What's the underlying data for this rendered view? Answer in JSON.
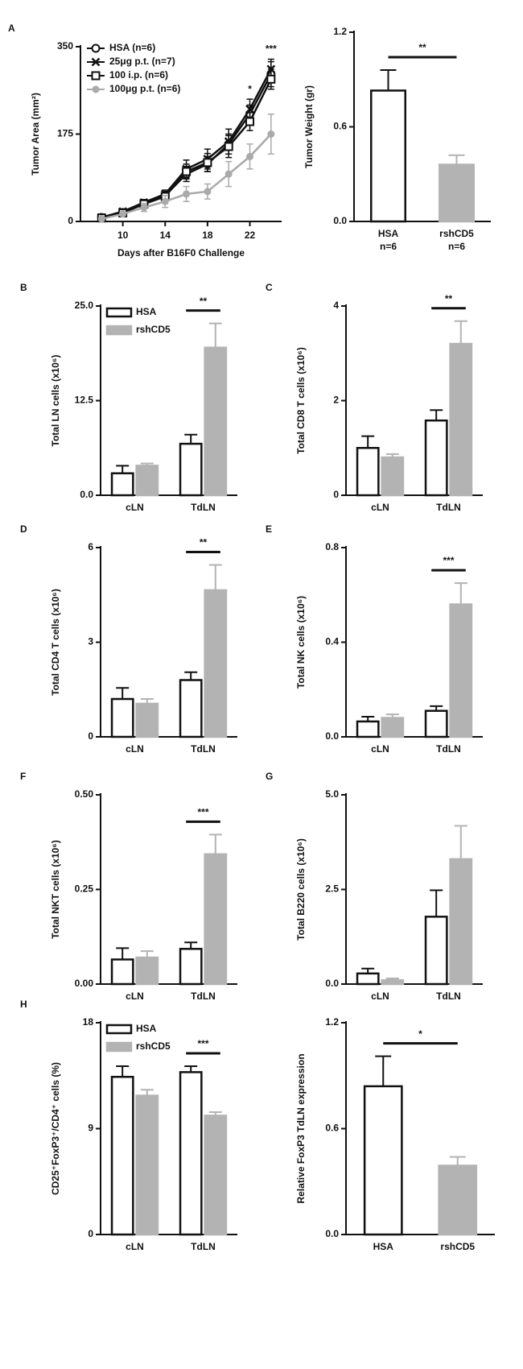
{
  "chart_data": [
    {
      "type": "line",
      "panel": "A",
      "ylabel": "Tumor Area (mm²)",
      "xlabel": "Days after B16F0 Challenge",
      "x": [
        8,
        10,
        12,
        14,
        16,
        18,
        20,
        22,
        24
      ],
      "xlim": [
        6,
        25
      ],
      "xticks": [
        10,
        14,
        18,
        22
      ],
      "ylim": [
        0,
        350
      ],
      "yticks": [
        0,
        175,
        350
      ],
      "legend": "upper left",
      "series": [
        {
          "name": "HSA (n=6)",
          "color": "#111111",
          "marker": "circle",
          "values": [
            8,
            18,
            35,
            52,
            95,
            115,
            155,
            215,
            295
          ],
          "errors": [
            3,
            5,
            6,
            8,
            15,
            15,
            20,
            18,
            25
          ]
        },
        {
          "name": "25μg p.t. (n=7)",
          "color": "#111111",
          "marker": "x",
          "values": [
            8,
            20,
            38,
            55,
            105,
            125,
            160,
            225,
            305
          ],
          "errors": [
            3,
            5,
            6,
            8,
            18,
            20,
            25,
            20,
            20
          ]
        },
        {
          "name": "100 i.p. (n=6)",
          "color": "#111111",
          "marker": "square",
          "values": [
            7,
            17,
            35,
            50,
            100,
            118,
            150,
            200,
            285
          ],
          "errors": [
            3,
            4,
            6,
            8,
            15,
            18,
            22,
            18,
            20
          ]
        },
        {
          "name": "100μg p.t.  (n=6)",
          "color": "#aaaaaa",
          "marker": "dot",
          "values": [
            5,
            15,
            28,
            40,
            55,
            60,
            95,
            130,
            175
          ],
          "errors": [
            3,
            4,
            8,
            12,
            15,
            15,
            25,
            25,
            40
          ]
        }
      ],
      "annotations": [
        {
          "text": "*",
          "x": 22
        },
        {
          "text": "***",
          "x": 24
        }
      ]
    },
    {
      "type": "bar",
      "ylabel": "Tumor Weight (gr)",
      "categories": [
        "HSA",
        "rshCD5"
      ],
      "category_sublabels": [
        "n=6",
        "n=6"
      ],
      "values": [
        0.83,
        0.36
      ],
      "errors": [
        0.13,
        0.06
      ],
      "colors": [
        "#ffffff",
        "#b3b3b3"
      ],
      "ylim": [
        0,
        1.2
      ],
      "yticks": [
        {
          "value": 0,
          "label": "0.0"
        },
        0.6,
        1.2
      ],
      "annotations": [
        {
          "text": "**"
        }
      ]
    },
    {
      "type": "bar",
      "panel": "B",
      "ylabel": "Total LN cells (x10⁶)",
      "categories": [
        "cLN",
        "TdLN"
      ],
      "ylim": [
        0,
        25
      ],
      "yticks": [
        {
          "value": 0,
          "label": "0.0"
        },
        12.5,
        {
          "value": 25,
          "label": "25.0"
        }
      ],
      "legend": "upper left",
      "series": [
        {
          "name": "HSA",
          "color": "#ffffff",
          "values": [
            2.9,
            6.8
          ],
          "errors": [
            1.0,
            1.2
          ]
        },
        {
          "name": "rshCD5",
          "color": "#b3b3b3",
          "values": [
            3.9,
            19.5
          ],
          "errors": [
            0.3,
            3.2
          ]
        }
      ],
      "annotations": [
        {
          "text": "**",
          "category": "TdLN"
        }
      ]
    },
    {
      "type": "bar",
      "panel": "C",
      "ylabel": "Total CD8 T cells (x10⁶)",
      "categories": [
        "cLN",
        "TdLN"
      ],
      "ylim": [
        0,
        4
      ],
      "yticks": [
        0,
        2,
        4
      ],
      "series": [
        {
          "name": "HSA",
          "color": "#ffffff",
          "values": [
            1.0,
            1.58
          ],
          "errors": [
            0.25,
            0.22
          ]
        },
        {
          "name": "rshCD5",
          "color": "#b3b3b3",
          "values": [
            0.8,
            3.2
          ],
          "errors": [
            0.07,
            0.48
          ]
        }
      ],
      "annotations": [
        {
          "text": "**",
          "category": "TdLN"
        }
      ]
    },
    {
      "type": "bar",
      "panel": "D",
      "ylabel": "Total CD4 T cells (x10⁶)",
      "categories": [
        "cLN",
        "TdLN"
      ],
      "ylim": [
        0,
        6
      ],
      "yticks": [
        0,
        3,
        6
      ],
      "series": [
        {
          "name": "HSA",
          "color": "#ffffff",
          "values": [
            1.2,
            1.8
          ],
          "errors": [
            0.35,
            0.25
          ]
        },
        {
          "name": "rshCD5",
          "color": "#b3b3b3",
          "values": [
            1.05,
            4.65
          ],
          "errors": [
            0.15,
            0.8
          ]
        }
      ],
      "annotations": [
        {
          "text": "**",
          "category": "TdLN"
        }
      ]
    },
    {
      "type": "bar",
      "panel": "E",
      "ylabel": "Total NK cells (x10⁶)",
      "categories": [
        "cLN",
        "TdLN"
      ],
      "ylim": [
        0,
        0.8
      ],
      "yticks": [
        {
          "value": 0,
          "label": "0.0"
        },
        0.4,
        0.8
      ],
      "series": [
        {
          "name": "HSA",
          "color": "#ffffff",
          "values": [
            0.065,
            0.11
          ],
          "errors": [
            0.02,
            0.02
          ]
        },
        {
          "name": "rshCD5",
          "color": "#b3b3b3",
          "values": [
            0.08,
            0.56
          ],
          "errors": [
            0.015,
            0.09
          ]
        }
      ],
      "annotations": [
        {
          "text": "***",
          "category": "TdLN"
        }
      ]
    },
    {
      "type": "bar",
      "panel": "F",
      "ylabel": "Total NKT cells (x10⁶)",
      "categories": [
        "cLN",
        "TdLN"
      ],
      "ylim": [
        0,
        0.5
      ],
      "yticks": [
        {
          "value": 0,
          "label": "0.00"
        },
        0.25,
        {
          "value": 0.5,
          "label": "0.50"
        }
      ],
      "series": [
        {
          "name": "HSA",
          "color": "#ffffff",
          "values": [
            0.065,
            0.093
          ],
          "errors": [
            0.03,
            0.017
          ]
        },
        {
          "name": "rshCD5",
          "color": "#b3b3b3",
          "values": [
            0.07,
            0.343
          ],
          "errors": [
            0.017,
            0.052
          ]
        }
      ],
      "annotations": [
        {
          "text": "***",
          "category": "TdLN"
        }
      ]
    },
    {
      "type": "bar",
      "panel": "G",
      "ylabel": "Total B220 cells (x10⁶)",
      "categories": [
        "cLN",
        "TdLN"
      ],
      "ylim": [
        0,
        5
      ],
      "yticks": [
        {
          "value": 0,
          "label": "0.0"
        },
        2.5,
        {
          "value": 5,
          "label": "5.0"
        }
      ],
      "series": [
        {
          "name": "HSA",
          "color": "#ffffff",
          "values": [
            0.28,
            1.78
          ],
          "errors": [
            0.13,
            0.7
          ]
        },
        {
          "name": "rshCD5",
          "color": "#b3b3b3",
          "values": [
            0.1,
            3.3
          ],
          "errors": [
            0.05,
            0.88
          ]
        }
      ]
    },
    {
      "type": "bar",
      "panel": "H",
      "ylabel": "CD25⁺FoxP3⁺/CD4⁺ cells (%)",
      "categories": [
        "cLN",
        "TdLN"
      ],
      "ylim": [
        0,
        18
      ],
      "yticks": [
        0,
        9,
        18
      ],
      "legend": "upper left",
      "series": [
        {
          "name": "HSA",
          "color": "#ffffff",
          "values": [
            13.4,
            13.8
          ],
          "errors": [
            0.9,
            0.5
          ]
        },
        {
          "name": "rshCD5",
          "color": "#b3b3b3",
          "values": [
            11.8,
            10.1
          ],
          "errors": [
            0.5,
            0.3
          ]
        }
      ],
      "annotations": [
        {
          "text": "***",
          "category": "TdLN"
        }
      ]
    },
    {
      "type": "bar",
      "ylabel": "Relative FoxP3 TdLN expression",
      "categories": [
        "HSA",
        "rshCD5"
      ],
      "values": [
        0.84,
        0.39
      ],
      "errors": [
        0.17,
        0.05
      ],
      "colors": [
        "#ffffff",
        "#b3b3b3"
      ],
      "ylim": [
        0,
        1.2
      ],
      "yticks": [
        {
          "value": 0,
          "label": "0.0"
        },
        0.6,
        1.2
      ],
      "annotations": [
        {
          "text": "*"
        }
      ]
    }
  ]
}
